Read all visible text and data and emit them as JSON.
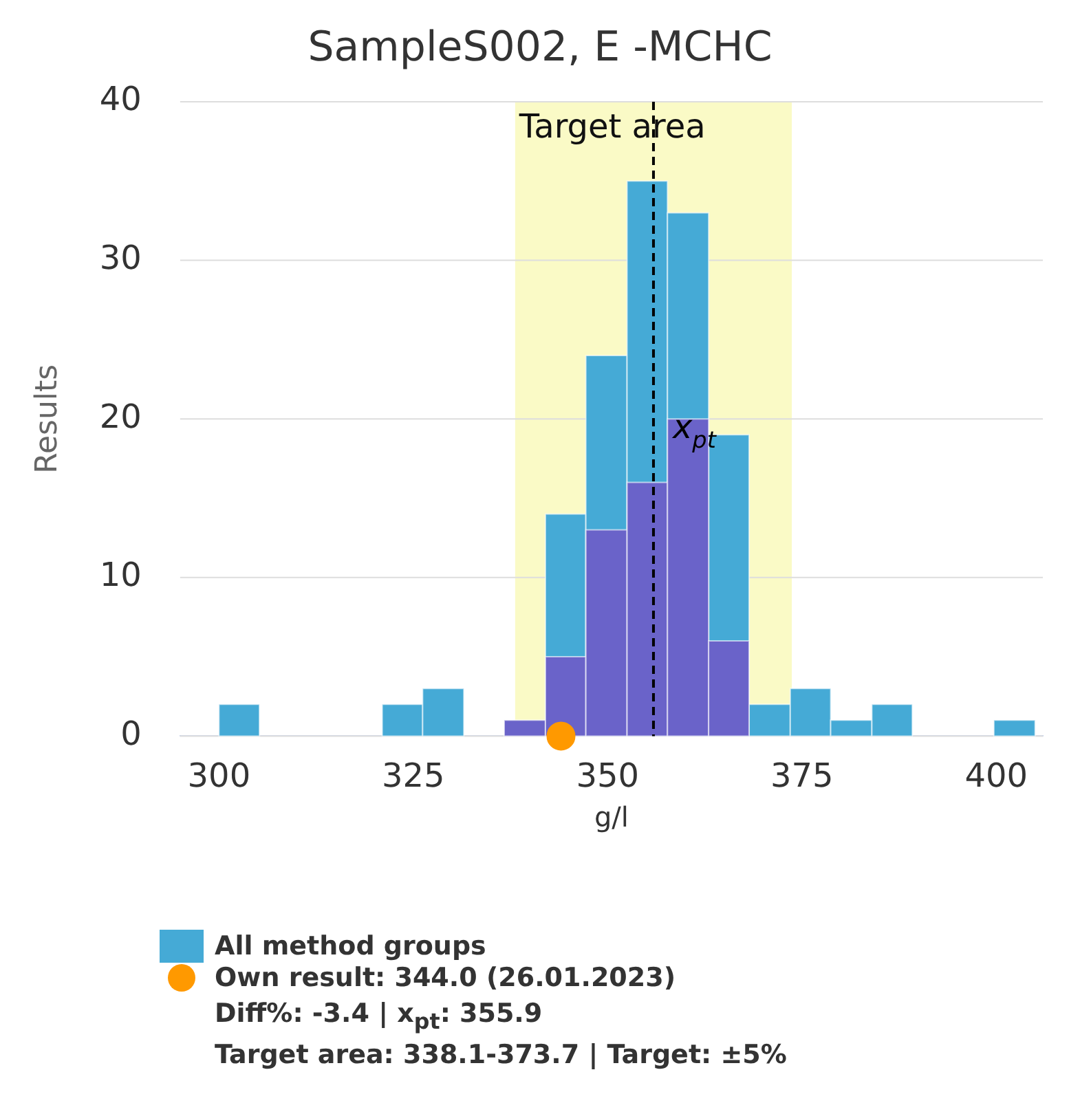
{
  "chart_data": {
    "type": "histogram",
    "title": "SampleS002, E -MCHC",
    "xlabel": "g/l",
    "ylabel": "Results",
    "bins": [
      300,
      305.2,
      321,
      326.2,
      331.5,
      336.7,
      342,
      347.2,
      352.5,
      357.7,
      363,
      368.2,
      373.5,
      378.7,
      384,
      389.2,
      399.7,
      405
    ],
    "series": [
      {
        "name": "All method groups",
        "color": "#45aad6",
        "values": [
          2,
          0,
          2,
          3,
          0,
          null,
          14,
          24,
          35,
          33,
          19,
          2,
          3,
          1,
          2,
          0,
          1
        ]
      },
      {
        "color": "#6a63c9",
        "values": [
          0,
          0,
          0,
          0,
          0,
          1,
          5,
          13,
          16,
          20,
          6,
          0,
          0,
          0,
          0,
          0,
          0
        ]
      },
      {
        "type": "scatter",
        "name": "Own result: 344.0 (26.01.2023)",
        "color": "#ff9900",
        "x": [
          344.0
        ],
        "values": [
          0
        ]
      }
    ],
    "xlim": [
      295,
      406
    ],
    "xticks": [
      300,
      325,
      350,
      375,
      400
    ],
    "ylim": [
      0,
      40
    ],
    "yticks": [
      0,
      10,
      20,
      30,
      40
    ],
    "grid": "y",
    "legend": "bottom",
    "marker": "circle",
    "bands": [
      {
        "axis": "x",
        "from": 338.1,
        "to": 373.7,
        "label": "Target area",
        "color": "#fafac6"
      }
    ],
    "ref_lines": [
      {
        "axis": "x",
        "value": 355.9,
        "label": "x$_{pt}$",
        "line_style": "dashed",
        "color": "#000000"
      }
    ],
    "annotations": [
      "Diff%: -3.4 | x$_{pt}$: 355.9",
      "Target area: 338.1-373.7 | Target: ±5%"
    ]
  }
}
